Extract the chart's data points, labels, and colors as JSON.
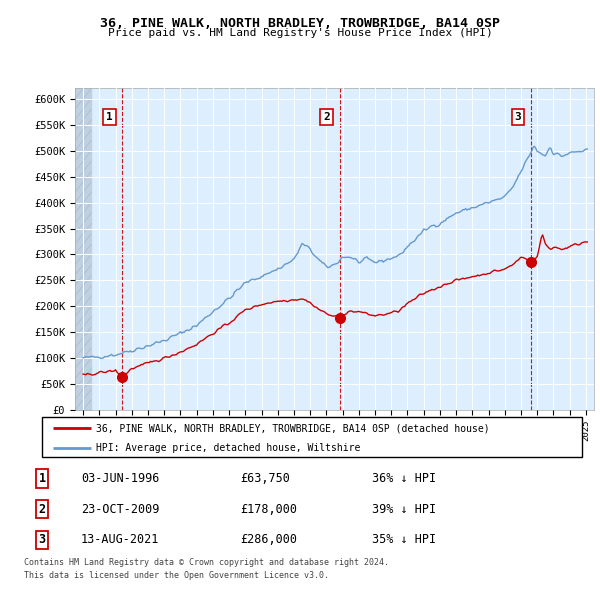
{
  "title": "36, PINE WALK, NORTH BRADLEY, TROWBRIDGE, BA14 0SP",
  "subtitle": "Price paid vs. HM Land Registry's House Price Index (HPI)",
  "legend_label_red": "36, PINE WALK, NORTH BRADLEY, TROWBRIDGE, BA14 0SP (detached house)",
  "legend_label_blue": "HPI: Average price, detached house, Wiltshire",
  "footer1": "Contains HM Land Registry data © Crown copyright and database right 2024.",
  "footer2": "This data is licensed under the Open Government Licence v3.0.",
  "ylim": [
    0,
    620000
  ],
  "yticks": [
    0,
    50000,
    100000,
    150000,
    200000,
    250000,
    300000,
    350000,
    400000,
    450000,
    500000,
    550000,
    600000
  ],
  "ytick_labels": [
    "£0",
    "£50K",
    "£100K",
    "£150K",
    "£200K",
    "£250K",
    "£300K",
    "£350K",
    "£400K",
    "£450K",
    "£500K",
    "£550K",
    "£600K"
  ],
  "sale_dates": [
    "03-JUN-1996",
    "23-OCT-2009",
    "13-AUG-2021"
  ],
  "sale_prices": [
    63750,
    178000,
    286000
  ],
  "sale_years": [
    1996.42,
    2009.81,
    2021.62
  ],
  "sale_hpi_pct": [
    "36% ↓ HPI",
    "39% ↓ HPI",
    "35% ↓ HPI"
  ],
  "marker_color": "#cc0000",
  "line_color_red": "#cc0000",
  "line_color_blue": "#6699cc",
  "bg_color": "#ddeeff",
  "grid_color": "#ffffff",
  "hatch_left_color": "#c0d0e0"
}
